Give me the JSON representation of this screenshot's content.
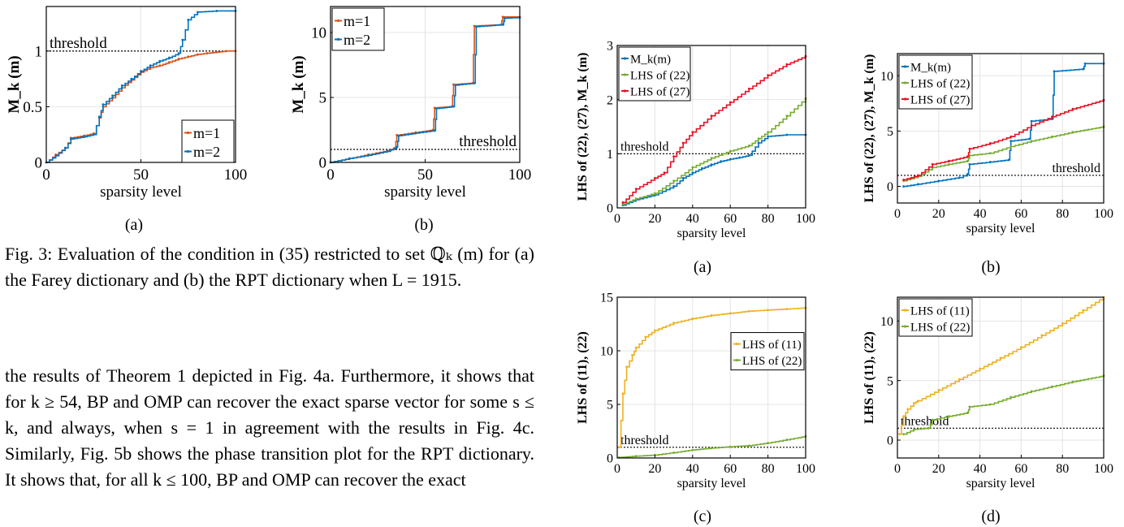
{
  "figure3": {
    "label_a": "(a)",
    "label_b": "(b)",
    "caption": "Fig. 3: Evaluation of the condition in (35) restricted to set ℚₖ (m) for (a) the Farey dictionary and (b) the RPT dictionary when L = 1915."
  },
  "figure4": {
    "label_a": "(a)",
    "label_b": "(b)",
    "label_c": "(c)",
    "label_d": "(d)"
  },
  "body_text": "the results of Theorem 1 depicted in Fig. 4a. Furthermore, it shows that for k ≥ 54, BP and OMP can recover the exact sparse vector for some s ≤ k, and always, when s = 1 in agreement with the results in Fig. 4c. Similarly, Fig. 5b shows the phase transition plot for the RPT dictionary. It shows that, for all k ≤ 100, BP and OMP can recover the exact",
  "chart_data": [
    {
      "id": "fig3a",
      "type": "line",
      "xlabel": "sparsity level",
      "ylabel": "M_k (m)",
      "xlim": [
        0,
        100
      ],
      "ylim": [
        0,
        1.4
      ],
      "xticks": [
        0,
        50,
        100
      ],
      "yticks": [
        0,
        0.5,
        1
      ],
      "threshold": {
        "value": 1,
        "label": "threshold"
      },
      "legend_position": "bottom-right",
      "grid": true,
      "series": [
        {
          "name": "m=1",
          "color": "#d95319",
          "x": [
            0,
            5,
            10,
            13,
            20,
            25,
            28,
            30,
            35,
            40,
            45,
            50,
            55,
            60,
            65,
            70,
            75,
            80,
            85,
            90,
            95,
            100
          ],
          "y": [
            0,
            0.07,
            0.13,
            0.22,
            0.24,
            0.26,
            0.4,
            0.5,
            0.58,
            0.67,
            0.74,
            0.81,
            0.85,
            0.87,
            0.9,
            0.93,
            0.95,
            0.97,
            0.98,
            0.99,
            1.0,
            1.0
          ]
        },
        {
          "name": "m=2",
          "color": "#0072bd",
          "x": [
            0,
            5,
            10,
            13,
            20,
            25,
            28,
            30,
            35,
            40,
            45,
            50,
            55,
            60,
            65,
            70,
            72,
            75,
            80,
            90,
            100
          ],
          "y": [
            0,
            0.06,
            0.13,
            0.21,
            0.23,
            0.25,
            0.41,
            0.52,
            0.6,
            0.69,
            0.75,
            0.82,
            0.87,
            0.91,
            0.94,
            0.98,
            1.1,
            1.28,
            1.35,
            1.36,
            1.36
          ]
        }
      ]
    },
    {
      "id": "fig3b",
      "type": "line",
      "xlabel": "sparsity level",
      "ylabel": "M_k (m)",
      "xlim": [
        0,
        100
      ],
      "ylim": [
        0,
        12
      ],
      "xticks": [
        0,
        50,
        100
      ],
      "yticks": [
        0,
        5,
        10
      ],
      "threshold": {
        "value": 1,
        "label": "threshold"
      },
      "legend_position": "top-left",
      "grid": true,
      "series": [
        {
          "name": "m=1",
          "color": "#d95319",
          "x": [
            0,
            10,
            20,
            30,
            34,
            35,
            45,
            54,
            55,
            64,
            65,
            75,
            76,
            90,
            91,
            100
          ],
          "y": [
            0,
            0.3,
            0.6,
            0.9,
            1.1,
            2.1,
            2.3,
            2.5,
            4.2,
            4.3,
            6.0,
            6.1,
            10.5,
            10.6,
            11.2,
            11.2
          ]
        },
        {
          "name": "m=2",
          "color": "#0072bd",
          "x": [
            0,
            10,
            20,
            30,
            35,
            36,
            45,
            55,
            56,
            65,
            66,
            76,
            77,
            91,
            92,
            100
          ],
          "y": [
            0,
            0.3,
            0.55,
            0.85,
            1.2,
            2.05,
            2.25,
            2.45,
            4.15,
            4.3,
            5.95,
            6.1,
            10.45,
            10.6,
            11.1,
            11.15
          ]
        }
      ]
    },
    {
      "id": "fig4a",
      "type": "line",
      "xlabel": "sparsity level",
      "ylabel": "LHS of (22), (27), M_k (m)",
      "xlim": [
        0,
        100
      ],
      "ylim": [
        0,
        3
      ],
      "xticks": [
        0,
        20,
        40,
        60,
        80,
        100
      ],
      "yticks": [
        0,
        1,
        2,
        3
      ],
      "threshold": {
        "value": 1,
        "label": "threshold"
      },
      "legend_position": "top-left",
      "grid": true,
      "series": [
        {
          "name": "M_k(m)",
          "color": "#0072bd",
          "x": [
            3,
            10,
            20,
            30,
            35,
            40,
            45,
            50,
            55,
            60,
            65,
            70,
            75,
            80,
            90,
            100
          ],
          "y": [
            0.05,
            0.15,
            0.24,
            0.4,
            0.55,
            0.65,
            0.73,
            0.8,
            0.86,
            0.9,
            0.93,
            0.97,
            1.2,
            1.32,
            1.35,
            1.35
          ]
        },
        {
          "name": "LHS of (22)",
          "color": "#77ac30",
          "x": [
            3,
            10,
            20,
            30,
            40,
            50,
            60,
            70,
            75,
            80,
            90,
            100
          ],
          "y": [
            0.07,
            0.17,
            0.27,
            0.5,
            0.75,
            0.92,
            1.05,
            1.15,
            1.28,
            1.4,
            1.7,
            2.02
          ]
        },
        {
          "name": "LHS of (27)",
          "color": "#e81123",
          "x": [
            3,
            10,
            20,
            25,
            30,
            35,
            40,
            50,
            60,
            70,
            80,
            90,
            100
          ],
          "y": [
            0.1,
            0.35,
            0.55,
            0.65,
            0.95,
            1.2,
            1.4,
            1.7,
            1.95,
            2.2,
            2.45,
            2.65,
            2.8
          ]
        }
      ]
    },
    {
      "id": "fig4b",
      "type": "line",
      "xlabel": "sparsity level",
      "ylabel": "LHS of (22), (27), M_k (m)",
      "xlim": [
        0,
        100
      ],
      "ylim": [
        -1.5,
        12
      ],
      "xticks": [
        0,
        20,
        40,
        60,
        80,
        100
      ],
      "yticks": [
        0,
        5,
        10
      ],
      "threshold": {
        "value": 1,
        "label": "threshold"
      },
      "legend_position": "top-left",
      "grid": true,
      "series": [
        {
          "name": "M_k(m)",
          "color": "#0072bd",
          "x": [
            3,
            10,
            20,
            30,
            34,
            35,
            45,
            54,
            55,
            64,
            65,
            75,
            76,
            90,
            91,
            100
          ],
          "y": [
            0,
            0.2,
            0.5,
            0.8,
            1.1,
            2.0,
            2.2,
            2.4,
            4.1,
            4.3,
            5.9,
            6.1,
            10.4,
            10.6,
            11.1,
            11.1
          ]
        },
        {
          "name": "LHS of (22)",
          "color": "#77ac30",
          "x": [
            3,
            10,
            17,
            25,
            34,
            35,
            45,
            55,
            65,
            75,
            85,
            100
          ],
          "y": [
            0.5,
            0.9,
            1.7,
            2.0,
            2.3,
            2.8,
            3.0,
            3.6,
            4.1,
            4.5,
            4.9,
            5.4
          ]
        },
        {
          "name": "LHS of (27)",
          "color": "#e81123",
          "x": [
            3,
            10,
            17,
            25,
            34,
            35,
            45,
            55,
            65,
            75,
            85,
            100
          ],
          "y": [
            0.6,
            1.0,
            2.0,
            2.3,
            2.7,
            3.4,
            3.9,
            4.5,
            5.5,
            6.3,
            7.0,
            7.8
          ]
        }
      ]
    },
    {
      "id": "fig4c",
      "type": "line",
      "xlabel": "sparsity level",
      "ylabel": "LHS of (11), (22)",
      "xlim": [
        0,
        100
      ],
      "ylim": [
        0,
        15
      ],
      "xticks": [
        0,
        20,
        40,
        60,
        80,
        100
      ],
      "yticks": [
        0,
        5,
        10,
        15
      ],
      "threshold": {
        "value": 1,
        "label": "threshold"
      },
      "legend_position": "top-right",
      "grid": true,
      "series": [
        {
          "name": "LHS of (11)",
          "color": "#edb120",
          "x": [
            1,
            3,
            5,
            8,
            10,
            15,
            20,
            30,
            40,
            50,
            60,
            70,
            80,
            90,
            100
          ],
          "y": [
            1,
            6,
            8.5,
            9.6,
            10.3,
            11.3,
            11.9,
            12.6,
            13.0,
            13.3,
            13.5,
            13.7,
            13.8,
            13.9,
            14.0
          ]
        },
        {
          "name": "LHS of (22)",
          "color": "#77ac30",
          "x": [
            1,
            10,
            20,
            30,
            40,
            50,
            60,
            70,
            80,
            90,
            100
          ],
          "y": [
            0.05,
            0.17,
            0.27,
            0.5,
            0.75,
            0.92,
            1.05,
            1.15,
            1.4,
            1.7,
            2.02
          ]
        }
      ]
    },
    {
      "id": "fig4d",
      "type": "line",
      "xlabel": "sparsity level",
      "ylabel": "LHS of (11), (22)",
      "xlim": [
        0,
        100
      ],
      "ylim": [
        -1.5,
        12
      ],
      "xticks": [
        0,
        20,
        40,
        60,
        80,
        100
      ],
      "yticks": [
        0,
        5,
        10
      ],
      "threshold": {
        "value": 1,
        "label": "threshold"
      },
      "legend_position": "top-left",
      "grid": true,
      "series": [
        {
          "name": "LHS of (11)",
          "color": "#edb120",
          "x": [
            1,
            3,
            5,
            8,
            10,
            20,
            30,
            40,
            50,
            60,
            70,
            80,
            90,
            100
          ],
          "y": [
            0.5,
            2.0,
            2.6,
            3.1,
            3.3,
            4.2,
            5.1,
            6.0,
            6.9,
            7.8,
            8.8,
            9.8,
            10.9,
            12.0
          ]
        },
        {
          "name": "LHS of (22)",
          "color": "#77ac30",
          "x": [
            3,
            8,
            15,
            17,
            25,
            34,
            35,
            45,
            55,
            65,
            75,
            85,
            100
          ],
          "y": [
            0.5,
            0.9,
            1.0,
            1.7,
            2.0,
            2.3,
            2.8,
            3.0,
            3.6,
            4.1,
            4.5,
            4.9,
            5.4
          ]
        }
      ]
    }
  ]
}
